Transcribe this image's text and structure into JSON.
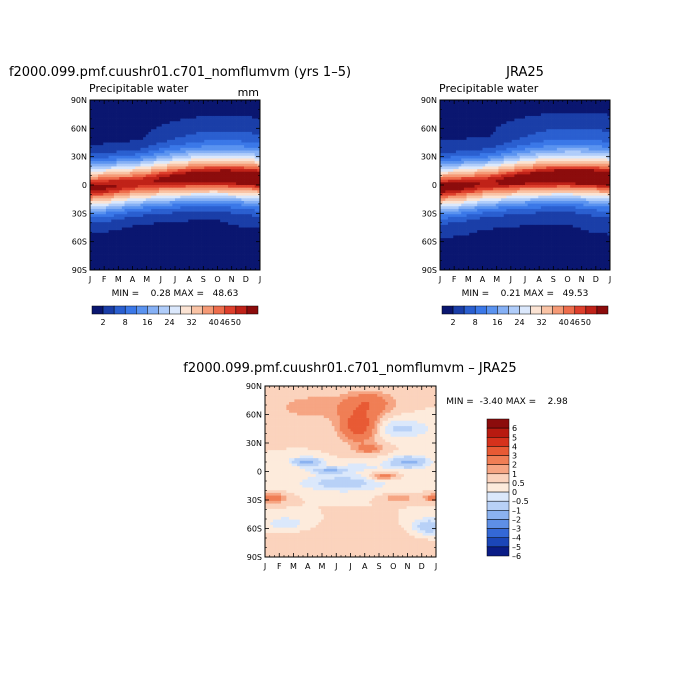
{
  "chart_data": [
    {
      "type": "heatmap",
      "title": "f2000.099.pmf.cuushr01.c701_nomflumvm (yrs 1–5)",
      "subtitle": "Precipitable water",
      "units": "mm",
      "x_tick_labels": [
        "J",
        "F",
        "M",
        "A",
        "M",
        "J",
        "J",
        "A",
        "S",
        "O",
        "N",
        "D",
        "J"
      ],
      "y_tick_labels": [
        "90S",
        "60S",
        "30S",
        "0",
        "30N",
        "60N",
        "90N"
      ],
      "ylim": [
        -90,
        90
      ],
      "stats_text": "MIN =    0.28 MAX =   48.63",
      "min": 0.28,
      "max": 48.63,
      "colorbar_labels": [
        "2",
        "8",
        "16",
        "24",
        "32",
        "40",
        "46",
        "50"
      ],
      "colorbar_levels": [
        2,
        4,
        8,
        12,
        16,
        20,
        24,
        28,
        32,
        36,
        40,
        44,
        46,
        48,
        50
      ]
    },
    {
      "type": "heatmap",
      "title": "JRA25",
      "subtitle": "Precipitable water",
      "x_tick_labels": [
        "J",
        "F",
        "M",
        "A",
        "M",
        "J",
        "J",
        "A",
        "S",
        "O",
        "N",
        "D",
        "J"
      ],
      "y_tick_labels": [
        "90S",
        "60S",
        "30S",
        "0",
        "30N",
        "60N",
        "90N"
      ],
      "ylim": [
        -90,
        90
      ],
      "stats_text": "MIN =    0.21 MAX =   49.53",
      "min": 0.21,
      "max": 49.53,
      "colorbar_labels": [
        "2",
        "8",
        "16",
        "24",
        "32",
        "40",
        "46",
        "50"
      ]
    },
    {
      "type": "heatmap",
      "title": "f2000.099.pmf.cuushr01.c701_nomflumvm – JRA25",
      "x_tick_labels": [
        "J",
        "F",
        "M",
        "A",
        "M",
        "J",
        "J",
        "A",
        "S",
        "O",
        "N",
        "D",
        "J"
      ],
      "y_tick_labels": [
        "90S",
        "60S",
        "30S",
        "0",
        "30N",
        "60N",
        "90N"
      ],
      "ylim": [
        -90,
        90
      ],
      "stats_text": "MIN =  -3.40 MAX =    2.98",
      "min": -3.4,
      "max": 2.98,
      "colorbar_labels": [
        "6",
        "5",
        "4",
        "3",
        "2",
        "1",
        "0.5",
        "0",
        "–0.5",
        "–1",
        "–2",
        "–3",
        "–4",
        "–5",
        "–6"
      ],
      "colorbar_levels": [
        -6,
        -5,
        -4,
        -3,
        -2,
        -1,
        -0.5,
        0,
        0.5,
        1,
        2,
        3,
        4,
        5,
        6
      ]
    }
  ],
  "colors": {
    "abs_scale": [
      "#0a1670",
      "#1a3ea8",
      "#2a5fd0",
      "#3b78e8",
      "#5a93f0",
      "#85b0f5",
      "#b0cdfa",
      "#dbe8fc",
      "#fbe3d3",
      "#f9c3a5",
      "#f59a76",
      "#ee6d4c",
      "#de3f2c",
      "#c02218",
      "#8c0c0c"
    ],
    "diff_scale": [
      "#8c0c0c",
      "#b81a10",
      "#d6321c",
      "#e85a34",
      "#f07e55",
      "#f6a583",
      "#fbd3bd",
      "#fdebdc",
      "#dbe8fb",
      "#b8d1f7",
      "#8bb2f0",
      "#5e8fe6",
      "#3468d6",
      "#1b46b8",
      "#0a1c86"
    ]
  }
}
